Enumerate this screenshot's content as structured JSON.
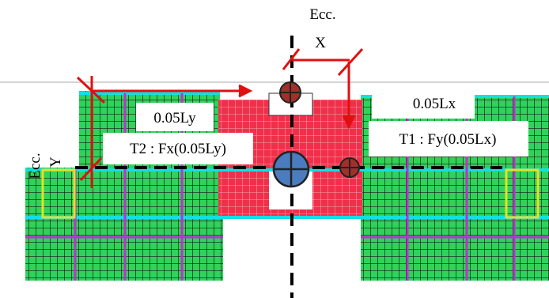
{
  "eccentricity_x": {
    "label": "Ecc.",
    "axis": "X",
    "distance": "0.05Lx",
    "torsion": "T1 : Fy(0.05Lx)"
  },
  "eccentricity_y": {
    "label": "Ecc.",
    "axis": "Y",
    "distance": "0.05Ly",
    "torsion": "T2 : Fx(0.05Ly)"
  }
}
